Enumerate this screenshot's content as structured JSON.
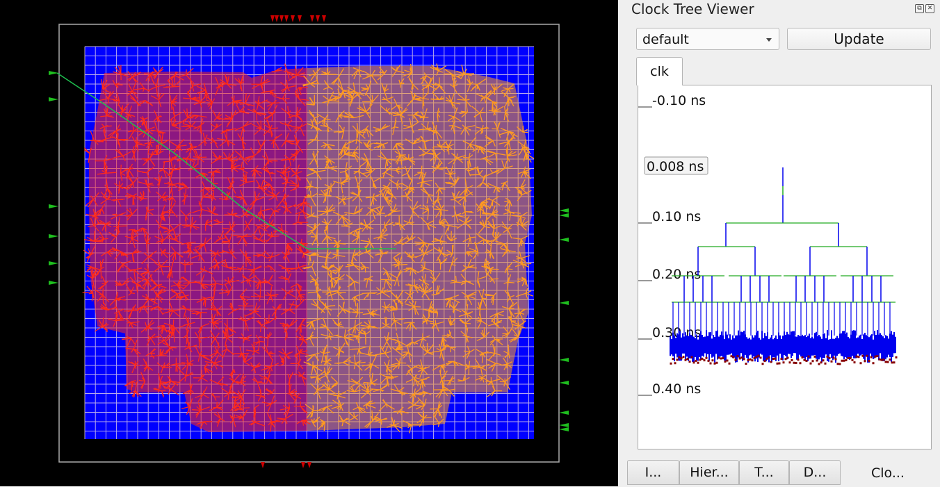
{
  "panel": {
    "title": "Clock Tree Viewer",
    "float_icon": "restore-icon",
    "close_icon": "close-icon",
    "corner_select": {
      "value": "default"
    },
    "update_button": "Update",
    "clock_tab": "clk",
    "time_axis": {
      "labels": [
        "-0.10 ns",
        "0.10 ns",
        "0.20 ns",
        "0.30 ns",
        "0.40 ns"
      ],
      "hover_label": "0.008 ns"
    },
    "bottom_tabs": [
      {
        "label": "I...",
        "active": false
      },
      {
        "label": "Hier...",
        "active": false
      },
      {
        "label": "T...",
        "active": false
      },
      {
        "label": "D...",
        "active": false
      },
      {
        "label": "Clo...",
        "active": true
      }
    ]
  },
  "colors": {
    "layout_background": "#000000",
    "core_fill": "#0000ff",
    "grid_lines": "#d8c8e8",
    "die_outline": "#aaaaaa",
    "left_cluster": "#ff2a1a",
    "right_cluster": "#ff9a20",
    "pins_top": "#cc0000",
    "pins_side": "#1fbf1f",
    "clock_net": "#1fbf4f",
    "tree_buffer": "#0000ee",
    "tree_wire": "#22aa22",
    "sink": "#880000"
  }
}
